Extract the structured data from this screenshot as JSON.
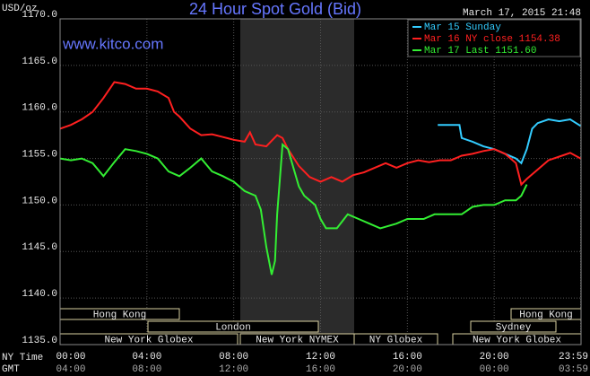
{
  "chart_data": {
    "type": "line",
    "title": "24 Hour Spot Gold (Bid)",
    "timestamp": "March 17, 2015 21:48",
    "watermark": "www.kitco.com",
    "y_label": "USD/oz",
    "x_row_labels": [
      "NY Time",
      "GMT"
    ],
    "xlim": [
      0,
      24
    ],
    "ylim": [
      1135,
      1170
    ],
    "yticks": [
      {
        "value": 1135,
        "label": "1135.0"
      },
      {
        "value": 1140,
        "label": "1140.0"
      },
      {
        "value": 1145,
        "label": "1145.0"
      },
      {
        "value": 1150,
        "label": "1150.0"
      },
      {
        "value": 1155,
        "label": "1155.0"
      },
      {
        "value": 1160,
        "label": "1160.0"
      },
      {
        "value": 1165,
        "label": "1165.0"
      },
      {
        "value": 1170,
        "label": "1170.0"
      }
    ],
    "xticks": [
      {
        "value": 0,
        "label": "00:00"
      },
      {
        "value": 4,
        "label": "04:00"
      },
      {
        "value": 8,
        "label": "08:00"
      },
      {
        "value": 12,
        "label": "12:00"
      },
      {
        "value": 16,
        "label": "16:00"
      },
      {
        "value": 20,
        "label": "20:00"
      },
      {
        "value": 23.983,
        "label": "23:59"
      }
    ],
    "gmt_labels": [
      "04:00",
      "08:00",
      "12:00",
      "16:00",
      "20:00",
      "00:00",
      "03:59"
    ],
    "grid": true,
    "sessions": [
      "Hong Kong",
      "London",
      "New York Globex",
      "New York NYMEX",
      "NY Globex",
      "Sydney",
      "Hong Kong",
      "New York Globex"
    ],
    "series": [
      {
        "name": "Mar 15 Sunday",
        "color": "#33ccff",
        "x": [
          17.4,
          18.4,
          18.5,
          19,
          19.5,
          20,
          20.5,
          21,
          21.25,
          21.5,
          21.75,
          22,
          22.5,
          23,
          23.5,
          23.98
        ],
        "values": [
          1158.6,
          1158.6,
          1157.2,
          1156.8,
          1156.3,
          1156.0,
          1155.5,
          1155.0,
          1154.5,
          1156.0,
          1158.2,
          1158.8,
          1159.2,
          1159.0,
          1159.2,
          1158.5
        ]
      },
      {
        "name": "Mar 16 NY close 1154.38",
        "color": "#ff2020",
        "x": [
          0,
          0.5,
          1,
          1.5,
          2,
          2.5,
          3,
          3.5,
          4,
          4.5,
          5,
          5.25,
          5.5,
          6,
          6.5,
          7,
          7.5,
          8,
          8.5,
          8.75,
          9,
          9.5,
          10,
          10.25,
          10.5,
          11,
          11.5,
          12,
          12.5,
          13,
          13.5,
          14,
          14.5,
          15,
          15.5,
          16,
          16.5,
          17,
          17.5,
          18,
          18.5,
          19,
          19.5,
          20,
          20.5,
          21,
          21.25,
          21.5,
          22,
          22.5,
          23,
          23.5,
          23.98
        ],
        "values": [
          1158.2,
          1158.6,
          1159.2,
          1160.0,
          1161.5,
          1163.2,
          1163.0,
          1162.5,
          1162.5,
          1162.2,
          1161.5,
          1160.0,
          1159.5,
          1158.2,
          1157.5,
          1157.6,
          1157.3,
          1157.0,
          1156.8,
          1157.8,
          1156.5,
          1156.3,
          1157.5,
          1157.2,
          1156.0,
          1154.2,
          1153.0,
          1152.5,
          1153.0,
          1152.5,
          1153.2,
          1153.5,
          1154.0,
          1154.5,
          1154.0,
          1154.5,
          1154.8,
          1154.6,
          1154.8,
          1154.8,
          1155.3,
          1155.5,
          1155.8,
          1156.0,
          1155.5,
          1154.5,
          1152.2,
          1152.8,
          1153.8,
          1154.8,
          1155.2,
          1155.6,
          1155.0
        ]
      },
      {
        "name": "Mar 17 Last 1151.60",
        "color": "#33ee33",
        "x": [
          0,
          0.5,
          1,
          1.5,
          2,
          2.5,
          3,
          3.5,
          4,
          4.5,
          5,
          5.5,
          6,
          6.5,
          7,
          7.5,
          8,
          8.5,
          9,
          9.25,
          9.5,
          9.75,
          9.9,
          10,
          10.25,
          10.5,
          10.75,
          11,
          11.25,
          11.75,
          12,
          12.25,
          12.75,
          13.25,
          13.75,
          14.25,
          14.75,
          15.5,
          16,
          16.75,
          17.25,
          18,
          18.5,
          19,
          19.5,
          20,
          20.5,
          21,
          21.25,
          21.5
        ],
        "values": [
          1155.0,
          1154.8,
          1155.0,
          1154.5,
          1153.1,
          1154.6,
          1156.0,
          1155.8,
          1155.5,
          1155.0,
          1153.6,
          1153.1,
          1154.0,
          1155.0,
          1153.6,
          1153.1,
          1152.5,
          1151.5,
          1151.0,
          1149.5,
          1145.5,
          1142.5,
          1144.0,
          1149.0,
          1156.5,
          1156.0,
          1154.0,
          1152.0,
          1151.0,
          1150.0,
          1148.5,
          1147.5,
          1147.5,
          1149.0,
          1148.5,
          1148.0,
          1147.5,
          1148.0,
          1148.5,
          1148.5,
          1149.0,
          1149.0,
          1149.0,
          1149.8,
          1150.0,
          1150.0,
          1150.5,
          1150.5,
          1151.0,
          1152.2
        ]
      }
    ]
  }
}
